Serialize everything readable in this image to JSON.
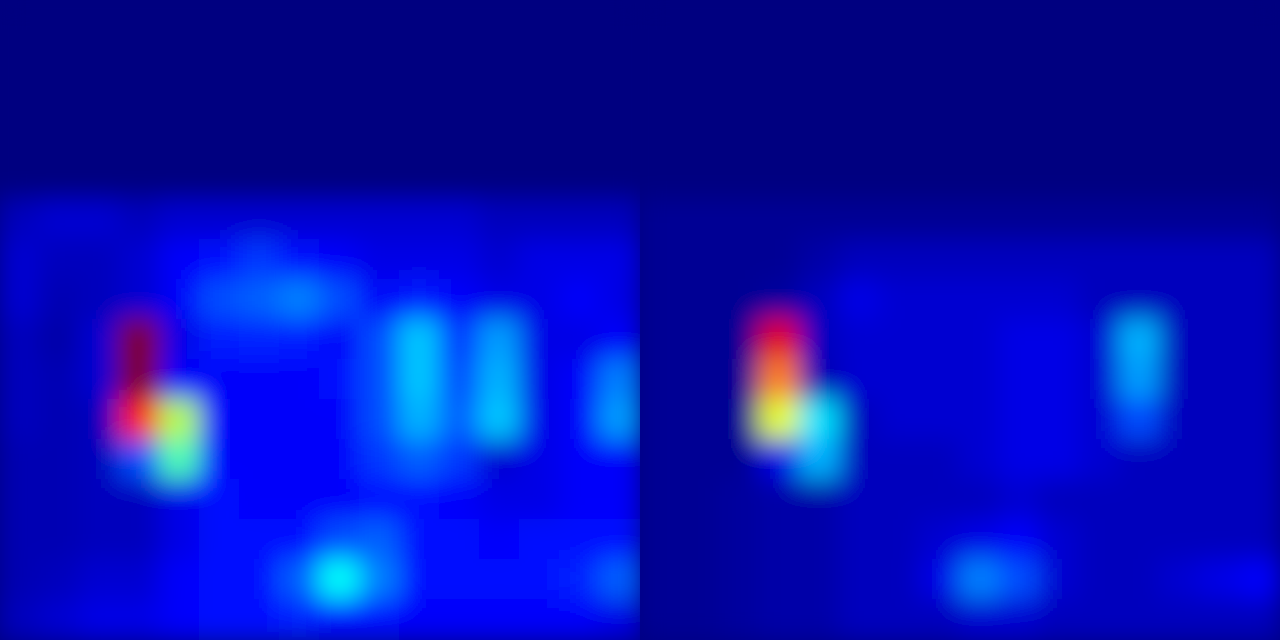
{
  "chart_data": [
    {
      "type": "heatmap",
      "tick_labels": false,
      "zlim": [
        0,
        1
      ],
      "cells": [
        [
          0,
          0,
          0,
          0,
          0,
          0,
          0,
          0,
          0,
          0,
          0,
          0,
          0,
          0,
          0,
          0
        ],
        [
          0,
          0,
          0,
          0,
          0,
          0,
          0,
          0,
          0,
          0,
          0,
          0,
          0,
          0,
          0,
          0
        ],
        [
          0,
          0,
          0,
          0,
          0,
          0,
          0,
          0,
          0,
          0,
          0,
          0,
          0,
          0,
          0,
          0
        ],
        [
          0,
          0,
          0,
          0,
          0,
          0,
          0,
          0,
          0,
          0,
          0,
          0,
          0,
          0,
          0,
          0
        ],
        [
          0,
          0,
          0,
          0,
          0,
          0,
          0,
          0,
          0,
          0,
          0,
          0,
          0,
          0,
          0,
          0
        ],
        [
          0.06,
          0.08,
          0.08,
          0.06,
          0.08,
          0.08,
          0.08,
          0.08,
          0.08,
          0.08,
          0.08,
          0.08,
          0.06,
          0.06,
          0.06,
          0.06
        ],
        [
          0.08,
          0.06,
          0.06,
          0.08,
          0.12,
          0.14,
          0.18,
          0.14,
          0.12,
          0.1,
          0.1,
          0.1,
          0.08,
          0.1,
          0.1,
          0.1
        ],
        [
          0.08,
          0.05,
          0.06,
          0.08,
          0.12,
          0.2,
          0.22,
          0.25,
          0.2,
          0.12,
          0.15,
          0.12,
          0.1,
          0.1,
          0.12,
          0.1
        ],
        [
          0.06,
          0.04,
          0.08,
          1.0,
          0.1,
          0.15,
          0.16,
          0.15,
          0.12,
          0.2,
          0.32,
          0.18,
          0.28,
          0.1,
          0.1,
          0.12
        ],
        [
          0.06,
          0.05,
          0.08,
          1.0,
          0.12,
          0.12,
          0.12,
          0.12,
          0.14,
          0.2,
          0.32,
          0.2,
          0.3,
          0.1,
          0.12,
          0.25
        ],
        [
          0.06,
          0.05,
          0.06,
          0.85,
          0.55,
          0.12,
          0.12,
          0.12,
          0.12,
          0.2,
          0.3,
          0.22,
          0.32,
          0.1,
          0.12,
          0.28
        ],
        [
          0.05,
          0.05,
          0.06,
          0.2,
          0.45,
          0.12,
          0.12,
          0.12,
          0.12,
          0.18,
          0.22,
          0.18,
          0.08,
          0.1,
          0.12,
          0.12
        ],
        [
          0.05,
          0.05,
          0.06,
          0.06,
          0.1,
          0.14,
          0.12,
          0.12,
          0.12,
          0.14,
          0.14,
          0.12,
          0.1,
          0.1,
          0.12,
          0.12
        ],
        [
          0.05,
          0.05,
          0.06,
          0.06,
          0.1,
          0.14,
          0.14,
          0.14,
          0.2,
          0.22,
          0.14,
          0.14,
          0.12,
          0.14,
          0.14,
          0.14
        ],
        [
          0.05,
          0.06,
          0.08,
          0.08,
          0.12,
          0.14,
          0.14,
          0.22,
          0.38,
          0.25,
          0.14,
          0.14,
          0.14,
          0.14,
          0.16,
          0.22
        ],
        [
          0.06,
          0.08,
          0.1,
          0.1,
          0.12,
          0.14,
          0.14,
          0.16,
          0.14,
          0.14,
          0.12,
          0.12,
          0.12,
          0.12,
          0.12,
          0.1
        ]
      ]
    },
    {
      "type": "heatmap",
      "tick_labels": false,
      "zlim": [
        0,
        1
      ],
      "cells": [
        [
          0,
          0,
          0,
          0,
          0,
          0,
          0,
          0,
          0,
          0,
          0,
          0,
          0,
          0,
          0,
          0
        ],
        [
          0,
          0,
          0,
          0,
          0,
          0,
          0,
          0,
          0,
          0,
          0,
          0,
          0,
          0,
          0,
          0
        ],
        [
          0,
          0,
          0,
          0,
          0,
          0,
          0,
          0,
          0,
          0,
          0,
          0,
          0,
          0,
          0,
          0
        ],
        [
          0,
          0,
          0,
          0,
          0,
          0,
          0,
          0,
          0,
          0,
          0,
          0,
          0,
          0,
          0,
          0
        ],
        [
          0,
          0,
          0,
          0,
          0,
          0,
          0,
          0,
          0,
          0,
          0,
          0,
          0,
          0,
          0,
          0
        ],
        [
          0.02,
          0.02,
          0.02,
          0.02,
          0.02,
          0.02,
          0.02,
          0.02,
          0.02,
          0.02,
          0.02,
          0.02,
          0.02,
          0.02,
          0.02,
          0.02
        ],
        [
          0.02,
          0.02,
          0.02,
          0.02,
          0.04,
          0.06,
          0.06,
          0.06,
          0.06,
          0.06,
          0.06,
          0.06,
          0.06,
          0.06,
          0.06,
          0.06
        ],
        [
          0.02,
          0.02,
          0.02,
          0.03,
          0.06,
          0.1,
          0.08,
          0.08,
          0.08,
          0.08,
          0.08,
          0.06,
          0.06,
          0.06,
          0.06,
          0.06
        ],
        [
          0.02,
          0.02,
          0.02,
          0.9,
          0.06,
          0.08,
          0.08,
          0.08,
          0.08,
          0.1,
          0.1,
          0.08,
          0.3,
          0.06,
          0.06,
          0.06
        ],
        [
          0.02,
          0.02,
          0.02,
          0.75,
          0.05,
          0.08,
          0.08,
          0.08,
          0.08,
          0.1,
          0.1,
          0.08,
          0.28,
          0.06,
          0.06,
          0.06
        ],
        [
          0.02,
          0.02,
          0.02,
          0.6,
          0.35,
          0.06,
          0.08,
          0.08,
          0.08,
          0.1,
          0.1,
          0.08,
          0.2,
          0.06,
          0.06,
          0.06
        ],
        [
          0.02,
          0.02,
          0.02,
          0.1,
          0.3,
          0.06,
          0.06,
          0.06,
          0.08,
          0.1,
          0.1,
          0.08,
          0.06,
          0.06,
          0.06,
          0.06
        ],
        [
          0.02,
          0.02,
          0.03,
          0.04,
          0.04,
          0.06,
          0.06,
          0.06,
          0.06,
          0.08,
          0.06,
          0.06,
          0.06,
          0.06,
          0.06,
          0.06
        ],
        [
          0.02,
          0.02,
          0.03,
          0.04,
          0.04,
          0.06,
          0.06,
          0.08,
          0.1,
          0.12,
          0.08,
          0.06,
          0.06,
          0.06,
          0.06,
          0.06
        ],
        [
          0.02,
          0.02,
          0.03,
          0.04,
          0.04,
          0.06,
          0.06,
          0.1,
          0.25,
          0.2,
          0.08,
          0.06,
          0.06,
          0.08,
          0.1,
          0.12
        ],
        [
          0.02,
          0.02,
          0.03,
          0.04,
          0.04,
          0.06,
          0.06,
          0.06,
          0.08,
          0.08,
          0.06,
          0.06,
          0.06,
          0.06,
          0.06,
          0.06
        ]
      ]
    }
  ]
}
